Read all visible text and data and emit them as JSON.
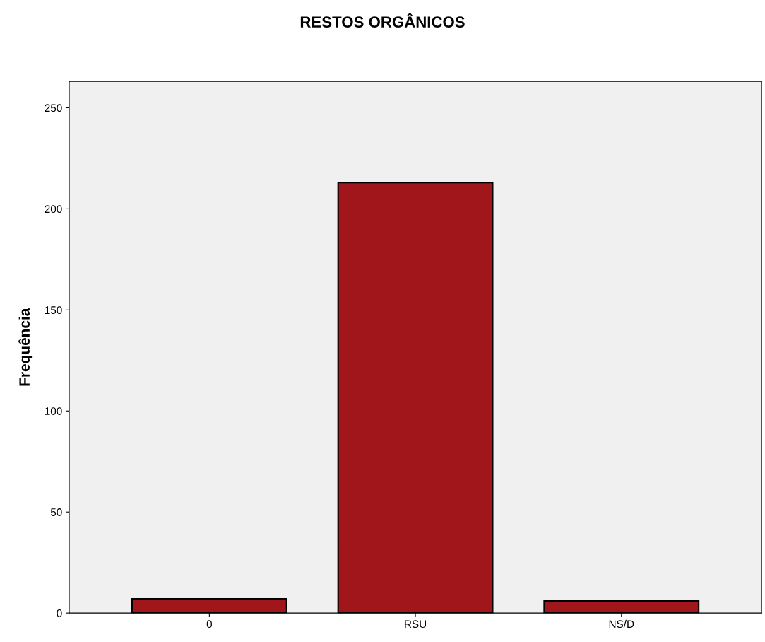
{
  "chart_data": {
    "type": "bar",
    "title": "RESTOS ORGÂNICOS",
    "ylabel": "Frequência",
    "categories": [
      "0",
      "RSU",
      "NS/D"
    ],
    "values": [
      7,
      213,
      6
    ],
    "color": "#a0161a",
    "ylim": [
      0,
      263
    ],
    "yticks": [
      0,
      50,
      100,
      150,
      200,
      250
    ],
    "grid": false,
    "legend": false
  }
}
